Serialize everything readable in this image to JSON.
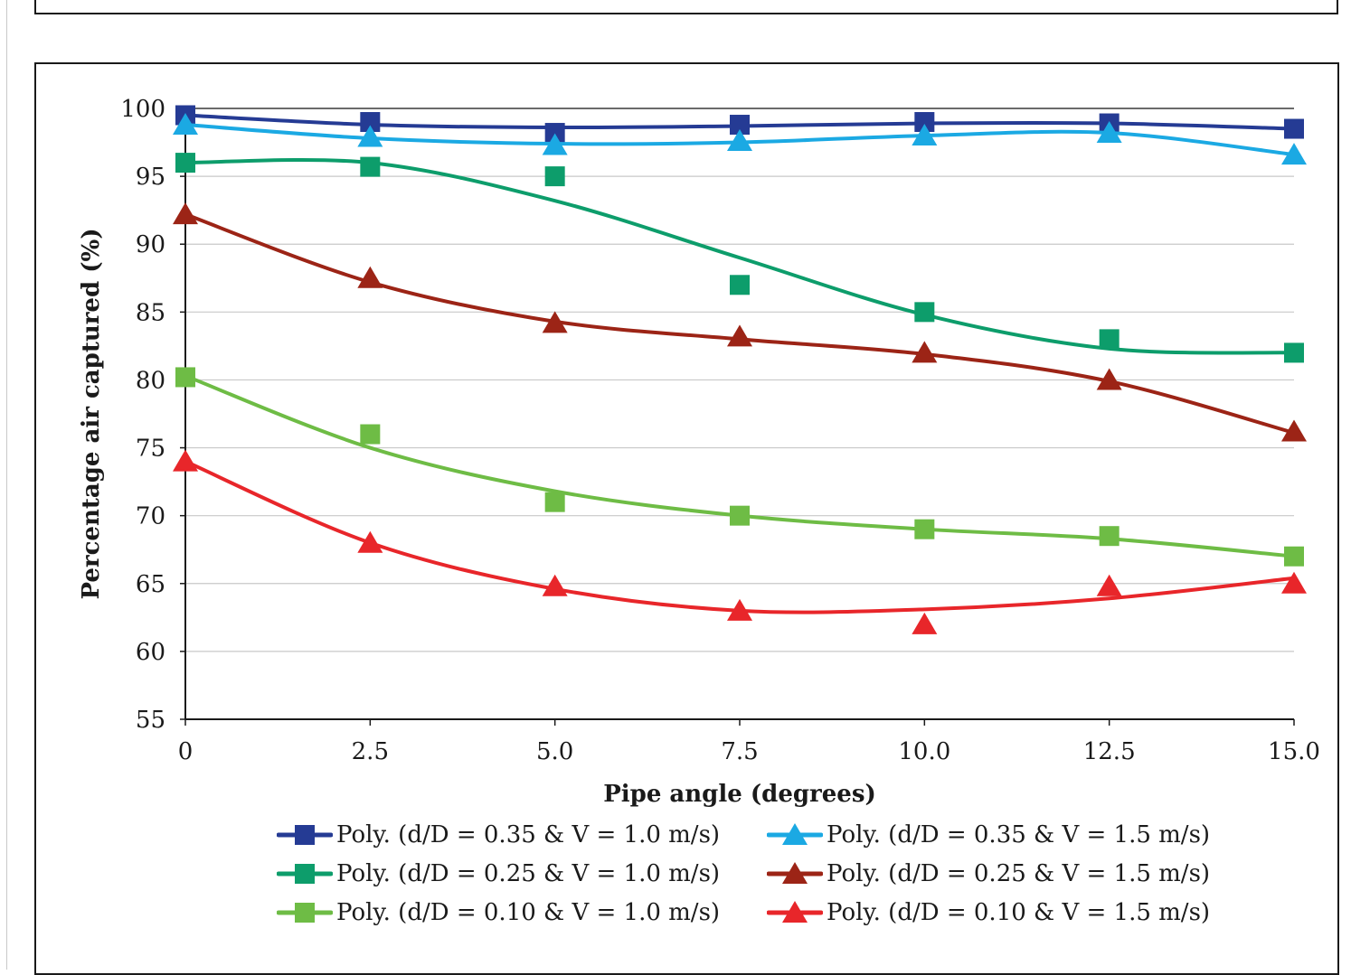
{
  "chart_data": {
    "type": "line",
    "title": "",
    "xlabel": "Pipe angle (degrees)",
    "ylabel": "Percentage air captured (%)",
    "xlim": [
      0,
      15
    ],
    "ylim": [
      55,
      100
    ],
    "x": [
      0,
      2.5,
      5,
      7.5,
      10,
      12.5,
      15
    ],
    "x_tick_labels": [
      "0",
      "2.5",
      "5.0",
      "7.5",
      "10.0",
      "12.5",
      "15.0"
    ],
    "y_ticks": [
      55,
      60,
      65,
      70,
      75,
      80,
      85,
      90,
      95,
      100
    ],
    "y_tick_labels": [
      "55",
      "60",
      "65",
      "70",
      "75",
      "80",
      "85",
      "90",
      "95",
      "100"
    ],
    "grid": true,
    "legend_position": "bottom",
    "series": [
      {
        "name": "Poly. (d/D = 0.35 & V = 1.0 m/s)",
        "marker": "square",
        "color": "#253b94",
        "points": [
          99.5,
          99.0,
          98.2,
          98.8,
          99.0,
          98.9,
          98.5
        ],
        "fit": [
          99.5,
          98.8,
          98.6,
          98.7,
          98.9,
          98.9,
          98.5
        ]
      },
      {
        "name": "Poly. (d/D = 0.35 & V = 1.5 m/s)",
        "marker": "triangle",
        "color": "#1ba9e3",
        "points": [
          98.8,
          97.9,
          97.3,
          97.6,
          98.0,
          98.2,
          96.6
        ],
        "fit": [
          98.8,
          97.8,
          97.4,
          97.5,
          98.0,
          98.2,
          96.6
        ]
      },
      {
        "name": "Poly. (d/D = 0.25 & V = 1.0 m/s)",
        "marker": "square",
        "color": "#0d9d6b",
        "points": [
          96.0,
          95.7,
          95.0,
          87.0,
          85.0,
          83.0,
          82.0
        ],
        "fit": [
          96.0,
          96.0,
          93.2,
          89.0,
          84.8,
          82.3,
          82.0
        ]
      },
      {
        "name": "Poly. (d/D = 0.25 & V = 1.5 m/s)",
        "marker": "triangle",
        "color": "#9c2416",
        "points": [
          92.2,
          87.5,
          84.2,
          83.2,
          82.0,
          80.0,
          76.2
        ],
        "fit": [
          92.2,
          87.2,
          84.3,
          83.0,
          81.9,
          79.9,
          76.1
        ]
      },
      {
        "name": "Poly. (d/D = 0.10 & V = 1.0 m/s)",
        "marker": "square",
        "color": "#6ebc45",
        "points": [
          80.2,
          76.0,
          71.0,
          70.0,
          69.0,
          68.5,
          67.0
        ],
        "fit": [
          80.3,
          75.0,
          71.8,
          70.0,
          69.0,
          68.3,
          67.0
        ]
      },
      {
        "name": "Poly. (d/D = 0.10 & V = 1.5 m/s)",
        "marker": "triangle",
        "color": "#e8262a",
        "points": [
          74.0,
          68.0,
          64.8,
          63.0,
          62.0,
          64.8,
          65.0
        ],
        "fit": [
          74.0,
          68.0,
          64.6,
          63.0,
          63.1,
          63.9,
          65.4
        ]
      }
    ]
  }
}
